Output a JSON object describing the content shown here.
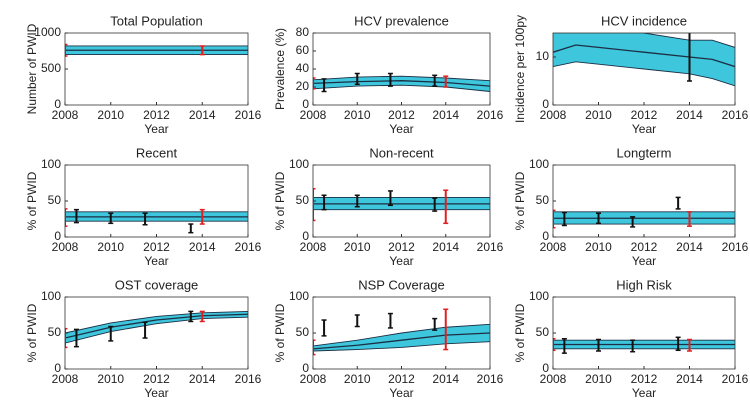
{
  "chart_data": [
    {
      "type": "band",
      "title": "Total Population",
      "xlabel": "Year",
      "ylabel": "Number of PWID",
      "xlim": [
        2008,
        2016
      ],
      "xticks": [
        2008,
        2010,
        2012,
        2014,
        2016
      ],
      "ylim": [
        0,
        1000
      ],
      "yticks": [
        0,
        500,
        1000
      ],
      "x": [
        2008,
        2010,
        2012,
        2014,
        2016
      ],
      "median": [
        760,
        760,
        760,
        760,
        760
      ],
      "lower": [
        700,
        700,
        700,
        700,
        700
      ],
      "upper": [
        820,
        820,
        820,
        820,
        820
      ],
      "band_color": "#3ec6dc",
      "line_color": "#1c2f45",
      "errorbars": [
        {
          "color": "#e02020",
          "x": [
            2008,
            2014
          ],
          "values": [
            760,
            760
          ],
          "errors": [
            80,
            60
          ]
        }
      ]
    },
    {
      "type": "band",
      "title": "HCV prevalence",
      "xlabel": "Year",
      "ylabel": "Prevalence (%)",
      "xlim": [
        2008,
        2016
      ],
      "xticks": [
        2008,
        2010,
        2012,
        2014,
        2016
      ],
      "ylim": [
        0,
        80
      ],
      "yticks": [
        0,
        20,
        40,
        60,
        80
      ],
      "x": [
        2008,
        2010,
        2012,
        2014,
        2016
      ],
      "median": [
        24,
        26,
        27,
        25,
        21
      ],
      "lower": [
        18,
        21,
        22,
        20,
        15
      ],
      "upper": [
        28,
        31,
        32,
        30,
        27
      ],
      "band_color": "#3ec6dc",
      "line_color": "#1c2f45",
      "errorbars": [
        {
          "color": "#111111",
          "x": [
            2008.5,
            2010,
            2011.5,
            2013.5
          ],
          "values": [
            22,
            29,
            28,
            27
          ],
          "errors": [
            7,
            6,
            7,
            6
          ]
        },
        {
          "color": "#e02020",
          "x": [
            2008,
            2014
          ],
          "values": [
            24,
            26
          ],
          "errors": [
            6,
            6
          ]
        }
      ]
    },
    {
      "type": "band",
      "title": "HCV incidence",
      "xlabel": "Year",
      "ylabel": "Incidence per 100py",
      "xlim": [
        2008,
        2016
      ],
      "xticks": [
        2008,
        2010,
        2012,
        2014,
        2016
      ],
      "ylim": [
        0,
        15
      ],
      "yticks": [
        0,
        10
      ],
      "x": [
        2008,
        2009,
        2010,
        2012,
        2014,
        2015,
        2016
      ],
      "median": [
        11,
        12.5,
        12,
        11,
        10,
        9.5,
        8
      ],
      "lower": [
        8,
        9,
        8.5,
        7.5,
        6.5,
        5.5,
        4
      ],
      "upper": [
        15,
        17,
        16.5,
        15,
        13.5,
        13.5,
        12
      ],
      "band_color": "#3ec6dc",
      "line_color": "#1c2f45",
      "errorbars": [
        {
          "color": "#111111",
          "x": [
            2014
          ],
          "values": [
            10.5
          ],
          "errors": [
            5.5
          ]
        }
      ]
    },
    {
      "type": "band",
      "title": "Recent",
      "xlabel": "Year",
      "ylabel": "% of PWID",
      "xlim": [
        2008,
        2016
      ],
      "xticks": [
        2008,
        2010,
        2012,
        2014,
        2016
      ],
      "ylim": [
        0,
        100
      ],
      "yticks": [
        0,
        50,
        100
      ],
      "x": [
        2008,
        2010,
        2012,
        2014,
        2016
      ],
      "median": [
        28,
        28,
        28,
        28,
        28
      ],
      "lower": [
        22,
        22,
        22,
        22,
        22
      ],
      "upper": [
        35,
        35,
        35,
        35,
        35
      ],
      "band_color": "#3ec6dc",
      "line_color": "#1c2f45",
      "errorbars": [
        {
          "color": "#111111",
          "x": [
            2008.5,
            2010,
            2011.5,
            2013.5
          ],
          "values": [
            29,
            26,
            25,
            12
          ],
          "errors": [
            9,
            7,
            8,
            6
          ]
        },
        {
          "color": "#e02020",
          "x": [
            2008,
            2014
          ],
          "values": [
            27,
            28
          ],
          "errors": [
            12,
            10
          ]
        }
      ]
    },
    {
      "type": "band",
      "title": "Non-recent",
      "xlabel": "Year",
      "ylabel": "% of PWID",
      "xlim": [
        2008,
        2016
      ],
      "xticks": [
        2008,
        2010,
        2012,
        2014,
        2016
      ],
      "ylim": [
        0,
        100
      ],
      "yticks": [
        0,
        50,
        100
      ],
      "x": [
        2008,
        2010,
        2012,
        2014,
        2016
      ],
      "median": [
        46,
        46,
        46,
        46,
        46
      ],
      "lower": [
        38,
        38,
        38,
        38,
        38
      ],
      "upper": [
        55,
        55,
        55,
        55,
        55
      ],
      "band_color": "#3ec6dc",
      "line_color": "#1c2f45",
      "errorbars": [
        {
          "color": "#111111",
          "x": [
            2008.5,
            2010,
            2011.5,
            2013.5
          ],
          "values": [
            48,
            50,
            54,
            45
          ],
          "errors": [
            10,
            8,
            10,
            9
          ]
        },
        {
          "color": "#e02020",
          "x": [
            2008,
            2014
          ],
          "values": [
            45,
            42
          ],
          "errors": [
            22,
            23
          ]
        }
      ]
    },
    {
      "type": "band",
      "title": "Longterm",
      "xlabel": "Year",
      "ylabel": "% of PWID",
      "xlim": [
        2008,
        2016
      ],
      "xticks": [
        2008,
        2010,
        2012,
        2014,
        2016
      ],
      "ylim": [
        0,
        100
      ],
      "yticks": [
        0,
        50,
        100
      ],
      "x": [
        2008,
        2010,
        2012,
        2014,
        2016
      ],
      "median": [
        26,
        26,
        26,
        26,
        26
      ],
      "lower": [
        18,
        18,
        18,
        18,
        18
      ],
      "upper": [
        35,
        35,
        35,
        35,
        35
      ],
      "band_color": "#3ec6dc",
      "line_color": "#1c2f45",
      "errorbars": [
        {
          "color": "#111111",
          "x": [
            2008.5,
            2010,
            2011.5,
            2013.5
          ],
          "values": [
            25,
            26,
            21,
            47
          ],
          "errors": [
            9,
            7,
            7,
            8
          ]
        },
        {
          "color": "#e02020",
          "x": [
            2008,
            2014
          ],
          "values": [
            25,
            25
          ],
          "errors": [
            12,
            10
          ]
        }
      ]
    },
    {
      "type": "band",
      "title": "OST coverage",
      "xlabel": "Year",
      "ylabel": "% of PWID",
      "xlim": [
        2008,
        2016
      ],
      "xticks": [
        2008,
        2010,
        2012,
        2014,
        2016
      ],
      "ylim": [
        0,
        100
      ],
      "yticks": [
        0,
        50,
        100
      ],
      "x": [
        2008,
        2010,
        2012,
        2014,
        2016
      ],
      "median": [
        43,
        58,
        68,
        74,
        76
      ],
      "lower": [
        36,
        52,
        63,
        70,
        72
      ],
      "upper": [
        50,
        64,
        73,
        78,
        80
      ],
      "band_color": "#3ec6dc",
      "line_color": "#1c2f45",
      "errorbars": [
        {
          "color": "#111111",
          "x": [
            2008.5,
            2010,
            2011.5,
            2013.5
          ],
          "values": [
            43,
            49,
            54,
            73
          ],
          "errors": [
            12,
            10,
            11,
            7
          ]
        },
        {
          "color": "#e02020",
          "x": [
            2008,
            2014
          ],
          "values": [
            43,
            73
          ],
          "errors": [
            13,
            7
          ]
        }
      ]
    },
    {
      "type": "band",
      "title": "NSP Coverage",
      "xlabel": "Year",
      "ylabel": "% of PWID",
      "xlim": [
        2008,
        2016
      ],
      "xticks": [
        2008,
        2010,
        2012,
        2014,
        2016
      ],
      "ylim": [
        0,
        100
      ],
      "yticks": [
        0,
        50,
        100
      ],
      "x": [
        2008,
        2010,
        2012,
        2014,
        2016
      ],
      "median": [
        28,
        33,
        40,
        47,
        50
      ],
      "lower": [
        25,
        27,
        30,
        35,
        38
      ],
      "upper": [
        32,
        40,
        50,
        58,
        62
      ],
      "band_color": "#3ec6dc",
      "line_color": "#1c2f45",
      "errorbars": [
        {
          "color": "#111111",
          "x": [
            2008.5,
            2010,
            2011.5,
            2013.5
          ],
          "values": [
            57,
            67,
            67,
            62
          ],
          "errors": [
            11,
            8,
            10,
            8
          ]
        },
        {
          "color": "#e02020",
          "x": [
            2008,
            2014
          ],
          "values": [
            30,
            55
          ],
          "errors": [
            10,
            28
          ]
        }
      ]
    },
    {
      "type": "band",
      "title": "High Risk",
      "xlabel": "Year",
      "ylabel": "% of PWID",
      "xlim": [
        2008,
        2016
      ],
      "xticks": [
        2008,
        2010,
        2012,
        2014,
        2016
      ],
      "ylim": [
        0,
        100
      ],
      "yticks": [
        0,
        50,
        100
      ],
      "x": [
        2008,
        2010,
        2012,
        2014,
        2016
      ],
      "median": [
        34,
        34,
        34,
        34,
        34
      ],
      "lower": [
        28,
        28,
        28,
        28,
        28
      ],
      "upper": [
        40,
        40,
        40,
        40,
        40
      ],
      "band_color": "#3ec6dc",
      "line_color": "#1c2f45",
      "errorbars": [
        {
          "color": "#111111",
          "x": [
            2008.5,
            2010,
            2011.5,
            2013.5
          ],
          "values": [
            32,
            33,
            32,
            35
          ],
          "errors": [
            10,
            8,
            8,
            9
          ]
        },
        {
          "color": "#e02020",
          "x": [
            2008,
            2014
          ],
          "values": [
            34,
            33
          ],
          "errors": [
            8,
            8
          ]
        }
      ]
    }
  ]
}
